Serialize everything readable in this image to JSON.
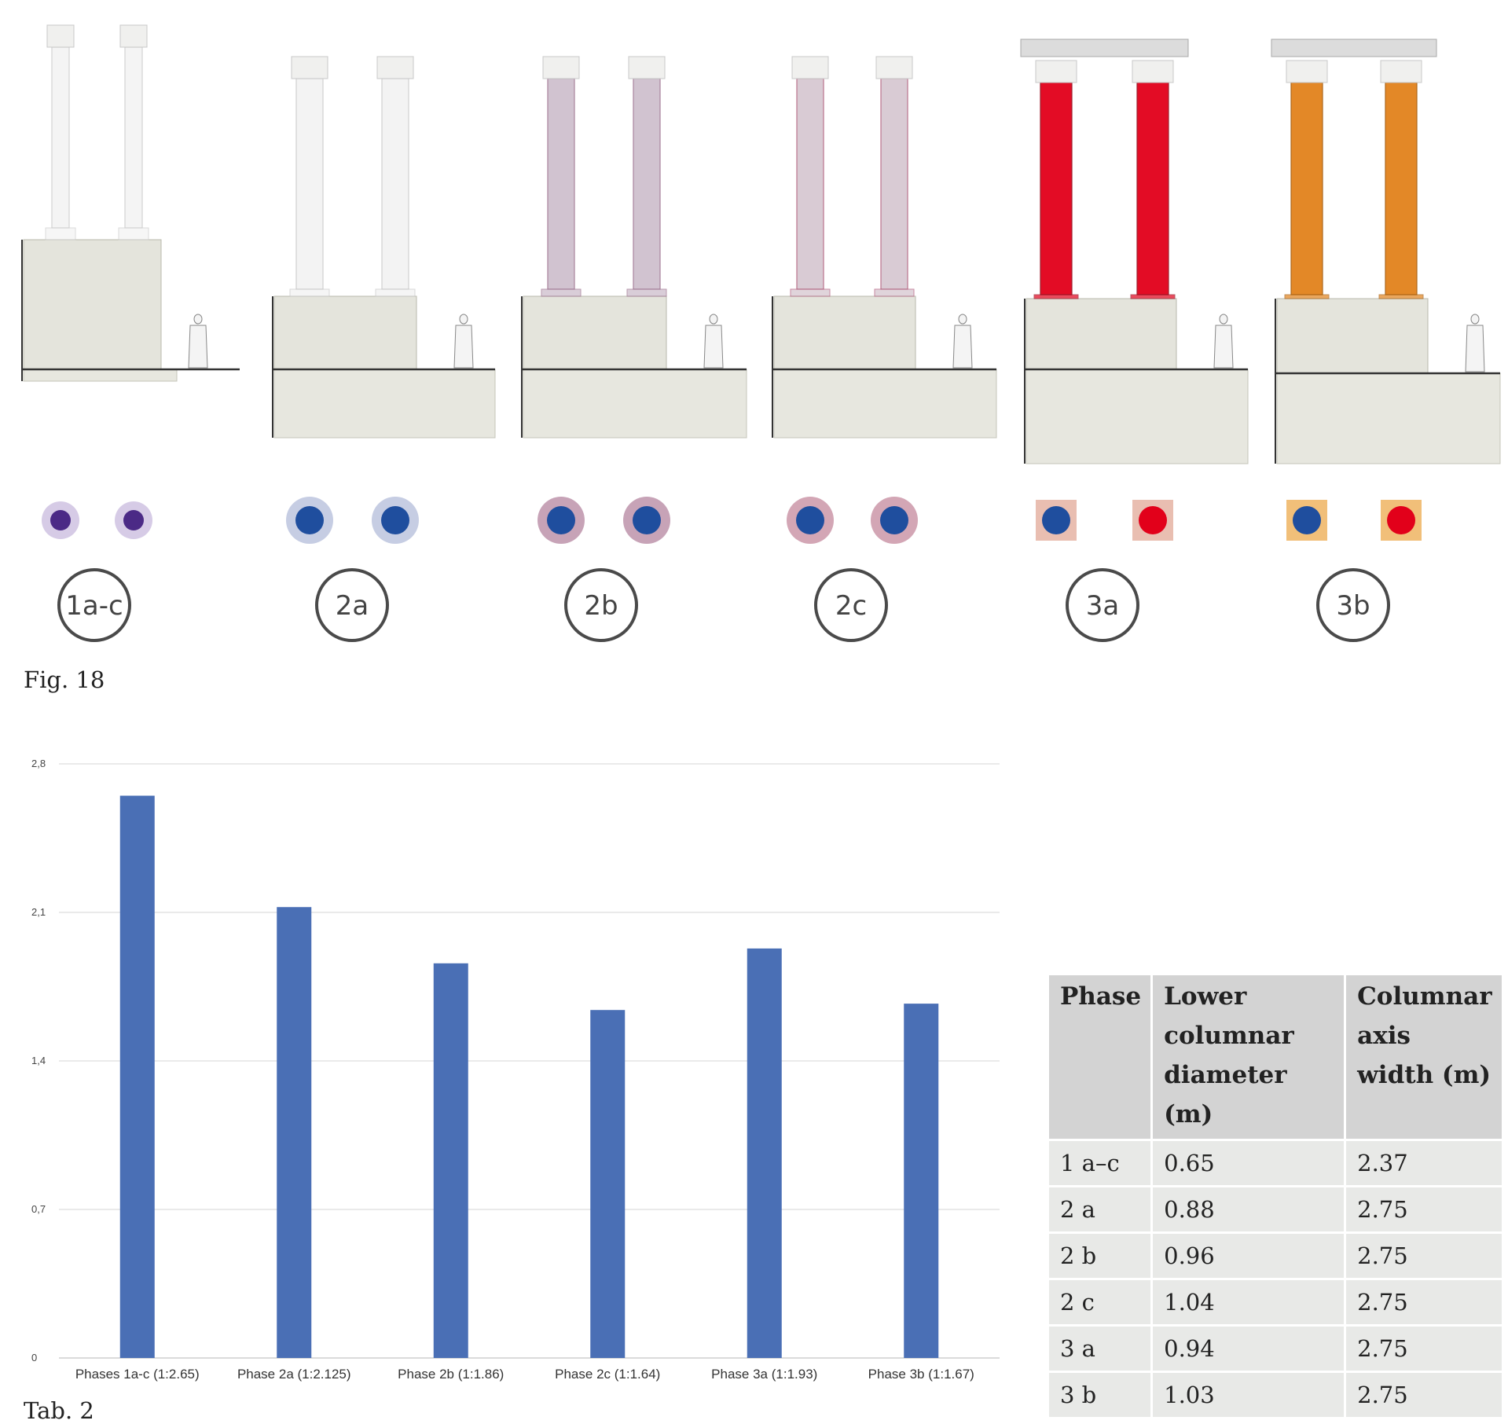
{
  "figure": {
    "caption": "Fig. 18",
    "phases": [
      {
        "label": "1a-c",
        "column_color": "#f3f3f3",
        "stroke_color": "#cccccc",
        "plan_core": "#4b2a86",
        "plan_ring": "#d6cbe6"
      },
      {
        "label": "2a",
        "column_color": "#f1f1f1",
        "stroke_color": "#c8c8c8",
        "plan_core": "#1f4e9e",
        "plan_ring": "#c6cde3"
      },
      {
        "label": "2b",
        "column_color": "#c9b9c8",
        "stroke_color": "#9b6f8c",
        "plan_core": "#1f4e9e",
        "plan_ring": "#c7a3b7"
      },
      {
        "label": "2c",
        "column_color": "#d3c3cd",
        "stroke_color": "#b05a7a",
        "plan_core": "#1f4e9e",
        "plan_ring": "#d3a6b5"
      },
      {
        "label": "3a",
        "column_color": "#e2001a",
        "stroke_color": "#9a1020",
        "plan_core": "#1f4e9e",
        "plan_ring": "#e7b7a9"
      },
      {
        "label": "3b",
        "column_color": "#e2821c",
        "stroke_color": "#a85f10",
        "plan_core": "#1f4e9e",
        "plan_ring": "#f0b86a"
      }
    ]
  },
  "chart_data": {
    "type": "bar",
    "title": "",
    "xlabel": "",
    "ylabel": "",
    "ylim": [
      0,
      2.8
    ],
    "yticks": [
      "0",
      "0,7",
      "1,4",
      "2,1",
      "2,8"
    ],
    "ytick_values": [
      0,
      0.7,
      1.4,
      2.1,
      2.8
    ],
    "grid": true,
    "color": "#4a6fb5",
    "categories": [
      "Phases 1a-c (1:2.65)",
      "Phase 2a (1:2.125)",
      "Phase 2b (1:1.86)",
      "Phase 2c (1:1.64)",
      "Phase 3a (1:1.93)",
      "Phase 3b (1:1.67)"
    ],
    "values": [
      2.65,
      2.125,
      1.86,
      1.64,
      1.93,
      1.67
    ]
  },
  "table": {
    "caption": "Tab. 2",
    "headers": [
      "Phase",
      "Lower columnar diameter (m)",
      "Columnar axis width (m)"
    ],
    "rows": [
      [
        "1 a–c",
        "0.65",
        "2.37"
      ],
      [
        "2 a",
        "0.88",
        "2.75"
      ],
      [
        "2 b",
        "0.96",
        "2.75"
      ],
      [
        "2 c",
        "1.04",
        "2.75"
      ],
      [
        "3 a",
        "0.94",
        "2.75"
      ],
      [
        "3 b",
        "1.03",
        "2.75"
      ]
    ]
  }
}
